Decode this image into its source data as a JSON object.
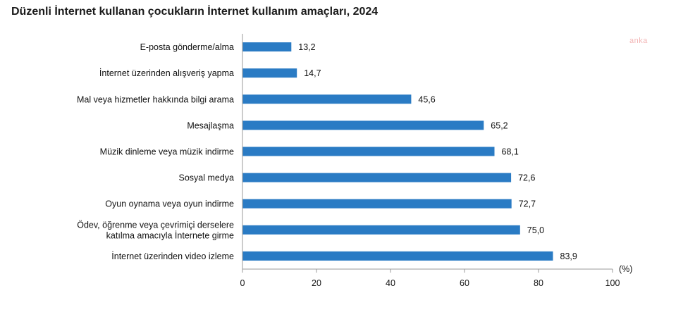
{
  "chart_data": {
    "type": "bar",
    "orientation": "horizontal",
    "title": "Düzenli İnternet kullanan çocukların İnternet kullanım amaçları, 2024",
    "unit_label": "(%)",
    "watermark": "anka",
    "categories": [
      "E-posta gönderme/alma",
      "İnternet üzerinden alışveriş yapma",
      "Mal veya hizmetler hakkında bilgi arama",
      "Mesajlaşma",
      "Müzik dinleme veya müzik indirme",
      "Sosyal medya",
      "Oyun oynama veya oyun indirme",
      "Ödev, öğrenme veya çevrimiçi derselere katılma amacıyla İnternete girme",
      "İnternet üzerinden video izleme"
    ],
    "category_lines": [
      [
        "E-posta gönderme/alma"
      ],
      [
        "İnternet üzerinden alışveriş yapma"
      ],
      [
        "Mal veya hizmetler hakkında bilgi arama"
      ],
      [
        "Mesajlaşma"
      ],
      [
        "Müzik dinleme veya müzik indirme"
      ],
      [
        "Sosyal medya"
      ],
      [
        "Oyun oynama veya oyun indirme"
      ],
      [
        "Ödev, öğrenme veya çevrimiçi derselere",
        "katılma amacıyla İnternete girme"
      ],
      [
        "İnternet üzerinden video izleme"
      ]
    ],
    "values": [
      13.2,
      14.7,
      45.6,
      65.2,
      68.1,
      72.6,
      72.7,
      75.0,
      83.9
    ],
    "value_labels": [
      "13,2",
      "14,7",
      "45,6",
      "65,2",
      "68,1",
      "72,6",
      "72,7",
      "75,0",
      "83,9"
    ],
    "xlim": [
      0,
      100
    ],
    "xticks": [
      0,
      20,
      40,
      60,
      80,
      100
    ],
    "bar_color": "#2a7bc4",
    "grid": false,
    "legend": "none"
  }
}
